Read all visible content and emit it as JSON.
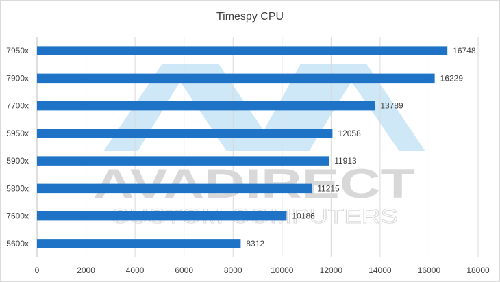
{
  "chart_data": {
    "type": "bar",
    "orientation": "horizontal",
    "title": "Timespy CPU",
    "xlabel": "",
    "ylabel": "",
    "categories": [
      "7950x",
      "7900x",
      "7700x",
      "5950x",
      "5900x",
      "5800x",
      "7600x",
      "5600x"
    ],
    "values": [
      16748,
      16229,
      13789,
      12058,
      11913,
      11215,
      10186,
      8312
    ],
    "xlim": [
      0,
      18000
    ],
    "xticks": [
      0,
      2000,
      4000,
      6000,
      8000,
      10000,
      12000,
      14000,
      16000,
      18000
    ],
    "grid": "vertical",
    "legend": "none",
    "bar_color": "#1f73c6",
    "data_labels": true
  },
  "watermark": {
    "brand": "AVADIRECT",
    "tagline": "CUSTOM COMPUTERS",
    "logo_color": "#cfe8f7",
    "text_color": "#d8d8d8"
  }
}
